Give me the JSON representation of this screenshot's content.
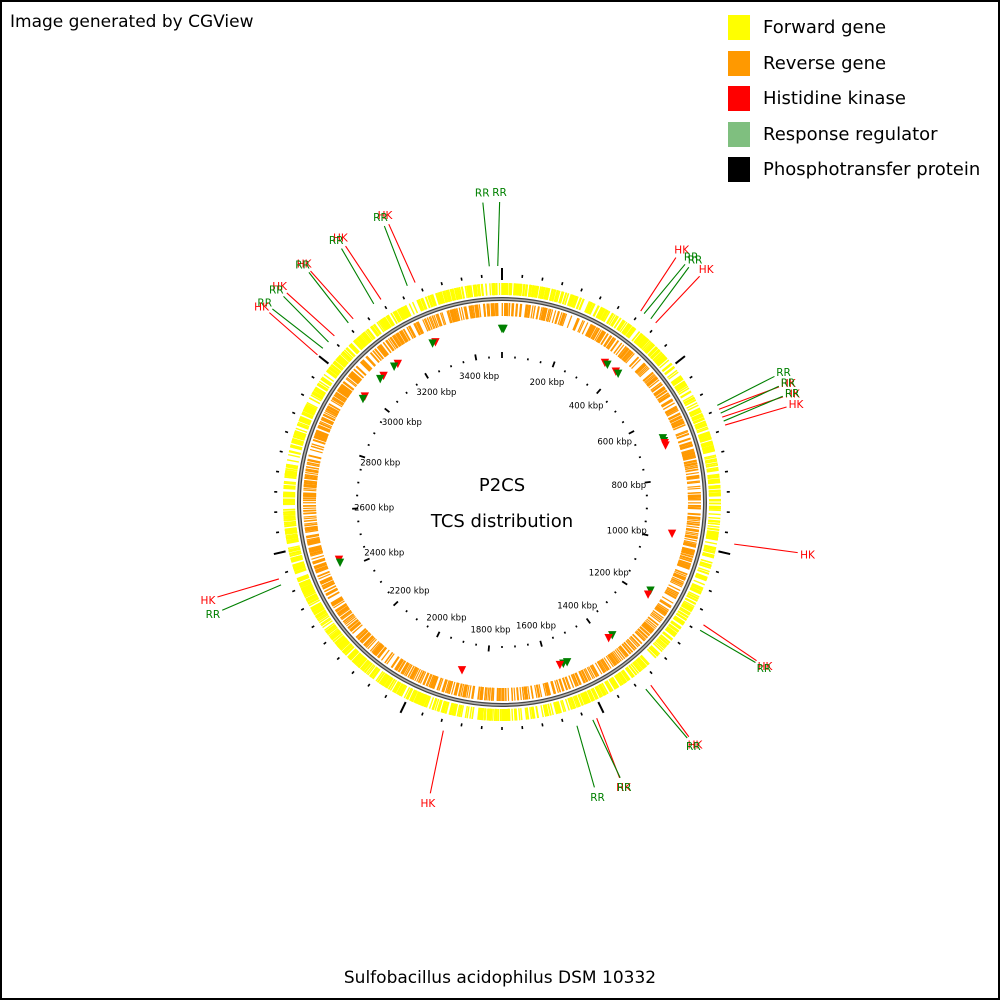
{
  "credit": "Image generated by CGView",
  "legend": [
    {
      "label": "Forward gene",
      "color": "#ffff00"
    },
    {
      "label": "Reverse gene",
      "color": "#ff9900"
    },
    {
      "label": "Histidine kinase",
      "color": "#ff0000"
    },
    {
      "label": "Response regulator",
      "color": "#7fbf7f"
    },
    {
      "label": "Phosphotransfer protein",
      "color": "#000000"
    }
  ],
  "map": {
    "title": "P2CS",
    "subtitle": "TCS distribution",
    "genome_length_kbp": 3500,
    "tick_labels": [
      "200 kbp",
      "400 kbp",
      "600 kbp",
      "800 kbp",
      "1000 kbp",
      "1200 kbp",
      "1400 kbp",
      "1600 kbp",
      "1800 kbp",
      "2000 kbp",
      "2200 kbp",
      "2400 kbp",
      "2600 kbp",
      "2800 kbp",
      "3000 kbp",
      "3200 kbp",
      "3400 kbp"
    ],
    "callouts": [
      {
        "text": "RR",
        "type": "RR",
        "position_kbp": 3470
      },
      {
        "text": "RR",
        "type": "RR",
        "position_kbp": 3490
      },
      {
        "text": "HK",
        "type": "HK",
        "position_kbp": 3290
      },
      {
        "text": "RR",
        "type": "RR",
        "position_kbp": 3270
      },
      {
        "text": "HK",
        "type": "HK",
        "position_kbp": 3200
      },
      {
        "text": "RR",
        "type": "RR",
        "position_kbp": 3180
      },
      {
        "text": "HK",
        "type": "HK",
        "position_kbp": 3120
      },
      {
        "text": "RR",
        "type": "RR",
        "position_kbp": 3105
      },
      {
        "text": "HK",
        "type": "HK",
        "position_kbp": 3060
      },
      {
        "text": "RR",
        "type": "RR",
        "position_kbp": 3040
      },
      {
        "text": "RR",
        "type": "RR",
        "position_kbp": 3020
      },
      {
        "text": "HK",
        "type": "HK",
        "position_kbp": 3000
      },
      {
        "text": "HK",
        "type": "HK",
        "position_kbp": 350
      },
      {
        "text": "RR",
        "type": "RR",
        "position_kbp": 360
      },
      {
        "text": "RR",
        "type": "RR",
        "position_kbp": 380
      },
      {
        "text": "HK",
        "type": "HK",
        "position_kbp": 395
      },
      {
        "text": "RR",
        "type": "RR",
        "position_kbp": 640
      },
      {
        "text": "HK",
        "type": "HK",
        "position_kbp": 650
      },
      {
        "text": "RR",
        "type": "RR",
        "position_kbp": 660
      },
      {
        "text": "HK",
        "type": "HK",
        "position_kbp": 670
      },
      {
        "text": "RR",
        "type": "RR",
        "position_kbp": 680
      },
      {
        "text": "HK",
        "type": "HK",
        "position_kbp": 690
      },
      {
        "text": "HK",
        "type": "HK",
        "position_kbp": 975
      },
      {
        "text": "HK",
        "type": "HK",
        "position_kbp": 1180
      },
      {
        "text": "RR",
        "type": "RR",
        "position_kbp": 1195
      },
      {
        "text": "HK",
        "type": "HK",
        "position_kbp": 1370
      },
      {
        "text": "RR",
        "type": "RR",
        "position_kbp": 1385
      },
      {
        "text": "HK",
        "type": "HK",
        "position_kbp": 1520
      },
      {
        "text": "RR",
        "type": "RR",
        "position_kbp": 1530
      },
      {
        "text": "RR",
        "type": "RR",
        "position_kbp": 1570
      },
      {
        "text": "HK",
        "type": "HK",
        "position_kbp": 1890
      },
      {
        "text": "HK",
        "type": "HK",
        "position_kbp": 2440
      },
      {
        "text": "RR",
        "type": "RR",
        "position_kbp": 2425
      }
    ],
    "inner_markers": [
      {
        "type": "RR",
        "position_kbp": 0
      },
      {
        "type": "RR",
        "position_kbp": 5
      },
      {
        "type": "HK",
        "position_kbp": 3280
      },
      {
        "type": "RR",
        "position_kbp": 3270
      },
      {
        "type": "HK",
        "position_kbp": 3140
      },
      {
        "type": "RR",
        "position_kbp": 3125
      },
      {
        "type": "HK",
        "position_kbp": 3080
      },
      {
        "type": "RR",
        "position_kbp": 3065
      },
      {
        "type": "HK",
        "position_kbp": 2990
      },
      {
        "type": "RR",
        "position_kbp": 2980
      },
      {
        "type": "HK",
        "position_kbp": 355
      },
      {
        "type": "RR",
        "position_kbp": 365
      },
      {
        "type": "HK",
        "position_kbp": 400
      },
      {
        "type": "RR",
        "position_kbp": 410
      },
      {
        "type": "RR",
        "position_kbp": 665
      },
      {
        "type": "RR",
        "position_kbp": 675
      },
      {
        "type": "HK",
        "position_kbp": 682
      },
      {
        "type": "HK",
        "position_kbp": 690
      },
      {
        "type": "HK",
        "position_kbp": 978
      },
      {
        "type": "RR",
        "position_kbp": 1175
      },
      {
        "type": "HK",
        "position_kbp": 1190
      },
      {
        "type": "RR",
        "position_kbp": 1365
      },
      {
        "type": "HK",
        "position_kbp": 1380
      },
      {
        "type": "RR",
        "position_kbp": 1535
      },
      {
        "type": "RR",
        "position_kbp": 1548
      },
      {
        "type": "HK",
        "position_kbp": 1560
      },
      {
        "type": "HK",
        "position_kbp": 1880
      },
      {
        "type": "HK",
        "position_kbp": 2435
      },
      {
        "type": "RR",
        "position_kbp": 2425
      }
    ]
  },
  "organism": "Sulfobacillus acidophilus DSM 10332"
}
